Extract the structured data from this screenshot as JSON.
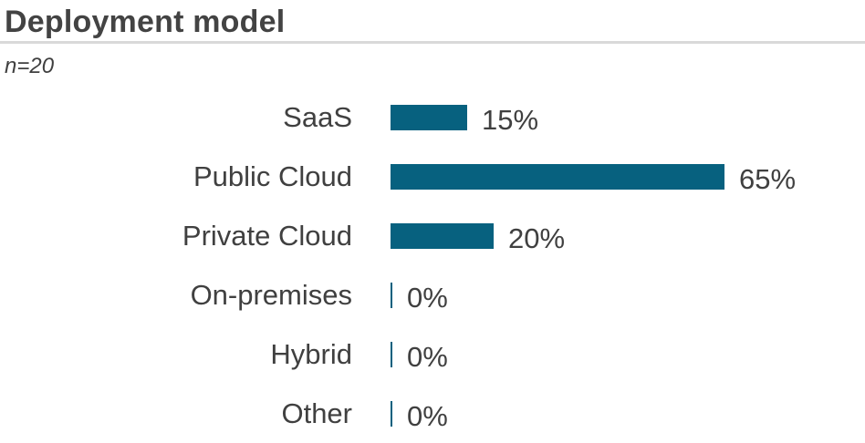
{
  "page": {
    "title": "Deployment model",
    "sample_size_label": "n=20"
  },
  "colors": {
    "background": "#FFFFFF",
    "bar": "#07617F",
    "text": "#404040",
    "title_text": "#434343",
    "divider": "#D9D9D9"
  },
  "chart_data": {
    "type": "bar",
    "orientation": "horizontal",
    "title": "Deployment model",
    "subtitle": "n=20",
    "categories": [
      "SaaS",
      "Public Cloud",
      "Private Cloud",
      "On-premises",
      "Hybrid",
      "Other"
    ],
    "values": [
      15,
      65,
      20,
      0,
      0,
      0
    ],
    "value_labels": [
      "15%",
      "65%",
      "20%",
      "0%",
      "0%",
      "0%"
    ],
    "unit": "%",
    "xlim": [
      0,
      65
    ],
    "grid": false,
    "legend": false,
    "bar_color": "#07617F",
    "zero_value_marker": "thin-tick"
  }
}
